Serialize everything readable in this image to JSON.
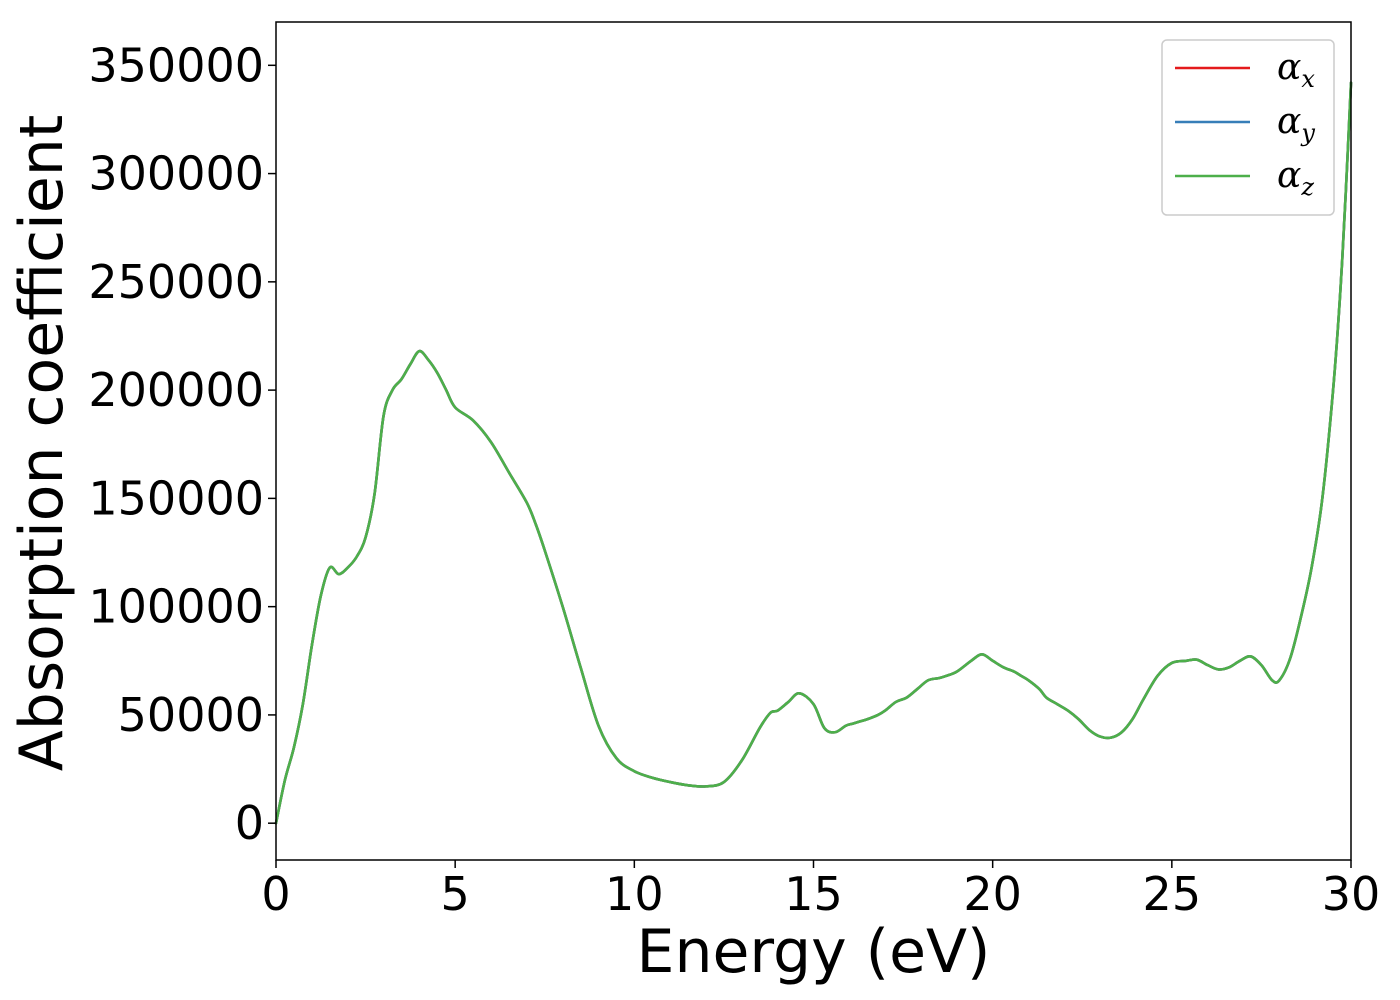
{
  "chart_data": {
    "type": "line",
    "xlabel": "Energy (eV)",
    "ylabel": "Absorption coefficient",
    "xlim": [
      0,
      30
    ],
    "ylim": [
      -17000,
      370000
    ],
    "x_ticks": [
      0,
      5,
      10,
      15,
      20,
      25,
      30
    ],
    "x_tick_labels": [
      "0",
      "5",
      "10",
      "15",
      "20",
      "25",
      "30"
    ],
    "y_ticks": [
      0,
      50000,
      100000,
      150000,
      200000,
      250000,
      300000,
      350000
    ],
    "y_tick_labels": [
      "0",
      "50000",
      "100000",
      "150000",
      "200000",
      "250000",
      "300000",
      "350000"
    ],
    "grid": false,
    "legend_position": "top-right",
    "x": [
      0,
      0.25,
      0.5,
      0.75,
      1.0,
      1.25,
      1.5,
      1.75,
      2.0,
      2.25,
      2.5,
      2.75,
      3.0,
      3.25,
      3.5,
      3.75,
      4.0,
      4.25,
      4.5,
      4.75,
      5.0,
      5.5,
      6.0,
      6.5,
      7.0,
      7.25,
      7.5,
      8.0,
      8.5,
      9.0,
      9.5,
      10.0,
      10.5,
      11.0,
      11.5,
      12.0,
      12.5,
      13.0,
      13.5,
      13.8,
      14.0,
      14.3,
      14.6,
      15.0,
      15.3,
      15.6,
      15.9,
      16.1,
      16.3,
      16.5,
      16.8,
      17.0,
      17.3,
      17.6,
      17.9,
      18.2,
      18.5,
      18.7,
      19.0,
      19.4,
      19.7,
      20.0,
      20.3,
      20.6,
      20.8,
      21.0,
      21.3,
      21.5,
      21.8,
      22.1,
      22.4,
      22.7,
      23.0,
      23.3,
      23.6,
      23.9,
      24.2,
      24.6,
      25.0,
      25.4,
      25.7,
      26.0,
      26.3,
      26.6,
      26.9,
      27.2,
      27.5,
      27.8,
      28.0,
      28.3,
      28.6,
      28.9,
      29.2,
      29.5,
      29.7,
      29.85,
      30.0
    ],
    "series": [
      {
        "name": "α_x",
        "color": "#e41a1c",
        "values": [
          0,
          20000,
          35000,
          55000,
          82000,
          105000,
          118000,
          115000,
          118000,
          123000,
          132000,
          152000,
          188000,
          200000,
          205000,
          212000,
          218000,
          214000,
          208000,
          200000,
          192000,
          186000,
          176000,
          162000,
          148000,
          138000,
          126000,
          100000,
          72000,
          45000,
          30000,
          24000,
          21000,
          19000,
          17500,
          17000,
          19000,
          29000,
          44000,
          51000,
          52000,
          56000,
          60000,
          55000,
          44000,
          42000,
          45000,
          46000,
          47000,
          48000,
          50000,
          52000,
          56000,
          58000,
          62000,
          66000,
          67000,
          68000,
          70000,
          75000,
          78000,
          75000,
          72000,
          70000,
          68000,
          66000,
          62000,
          58000,
          55000,
          52000,
          48000,
          43000,
          40000,
          39500,
          42000,
          48000,
          57000,
          68000,
          74000,
          75000,
          75500,
          73000,
          71000,
          72000,
          75000,
          77000,
          73000,
          66000,
          66000,
          76000,
          95000,
          118000,
          150000,
          200000,
          245000,
          290000,
          342000
        ]
      },
      {
        "name": "α_y",
        "color": "#377eb8",
        "values": [
          0,
          20000,
          35000,
          55000,
          82000,
          105000,
          118000,
          115000,
          118000,
          123000,
          132000,
          152000,
          188000,
          200000,
          205000,
          212000,
          218000,
          214000,
          208000,
          200000,
          192000,
          186000,
          176000,
          162000,
          148000,
          138000,
          126000,
          100000,
          72000,
          45000,
          30000,
          24000,
          21000,
          19000,
          17500,
          17000,
          19000,
          29000,
          44000,
          51000,
          52000,
          56000,
          60000,
          55000,
          44000,
          42000,
          45000,
          46000,
          47000,
          48000,
          50000,
          52000,
          56000,
          58000,
          62000,
          66000,
          67000,
          68000,
          70000,
          75000,
          78000,
          75000,
          72000,
          70000,
          68000,
          66000,
          62000,
          58000,
          55000,
          52000,
          48000,
          43000,
          40000,
          39500,
          42000,
          48000,
          57000,
          68000,
          74000,
          75000,
          75500,
          73000,
          71000,
          72000,
          75000,
          77000,
          73000,
          66000,
          66000,
          76000,
          95000,
          118000,
          150000,
          200000,
          245000,
          290000,
          342000
        ]
      },
      {
        "name": "α_z",
        "color": "#4daf4a",
        "values": [
          0,
          20000,
          35000,
          55000,
          82000,
          105000,
          118000,
          115000,
          118000,
          123000,
          132000,
          152000,
          188000,
          200000,
          205000,
          212000,
          218000,
          214000,
          208000,
          200000,
          192000,
          186000,
          176000,
          162000,
          148000,
          138000,
          126000,
          100000,
          72000,
          45000,
          30000,
          24000,
          21000,
          19000,
          17500,
          17000,
          19000,
          29000,
          44000,
          51000,
          52000,
          56000,
          60000,
          55000,
          44000,
          42000,
          45000,
          46000,
          47000,
          48000,
          50000,
          52000,
          56000,
          58000,
          62000,
          66000,
          67000,
          68000,
          70000,
          75000,
          78000,
          75000,
          72000,
          70000,
          68000,
          66000,
          62000,
          58000,
          55000,
          52000,
          48000,
          43000,
          40000,
          39500,
          42000,
          48000,
          57000,
          68000,
          74000,
          75000,
          75500,
          73000,
          71000,
          72000,
          75000,
          77000,
          73000,
          66000,
          66000,
          76000,
          95000,
          118000,
          150000,
          200000,
          245000,
          290000,
          342000
        ]
      }
    ],
    "legend": [
      {
        "symbol": "α",
        "subscript": "x",
        "color": "#e41a1c"
      },
      {
        "symbol": "α",
        "subscript": "y",
        "color": "#377eb8"
      },
      {
        "symbol": "α",
        "subscript": "z",
        "color": "#4daf4a"
      }
    ]
  }
}
